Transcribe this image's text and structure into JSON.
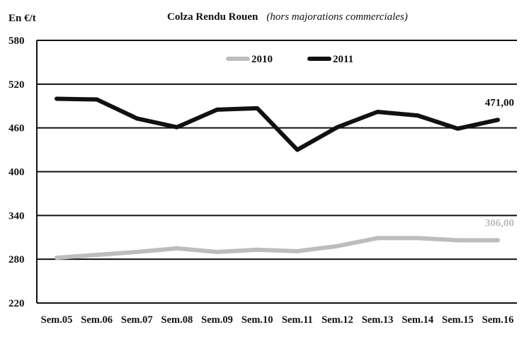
{
  "chart_data": {
    "type": "line",
    "title": "Colza Rendu Rouen",
    "subtitle": "(hors majorations commerciales)",
    "ylabel": "En €/t",
    "xlabel": "",
    "categories": [
      "Sem.05",
      "Sem.06",
      "Sem.07",
      "Sem.08",
      "Sem.09",
      "Sem.10",
      "Sem.11",
      "Sem.12",
      "Sem.13",
      "Sem.14",
      "Sem.15",
      "Sem.16"
    ],
    "ylim": [
      220,
      580
    ],
    "yticks": [
      220,
      280,
      340,
      400,
      460,
      520,
      580
    ],
    "grid": true,
    "legend_position": "top-center",
    "series": [
      {
        "name": "2010",
        "color": "#bdbdbd",
        "values": [
          282,
          286,
          290,
          295,
          290,
          293,
          291,
          298,
          309,
          309,
          306,
          306
        ],
        "end_label": "306,00"
      },
      {
        "name": "2011",
        "color": "#111111",
        "values": [
          500,
          499,
          473,
          461,
          485,
          487,
          430,
          461,
          482,
          477,
          459,
          471
        ],
        "end_label": "471,00"
      }
    ]
  }
}
